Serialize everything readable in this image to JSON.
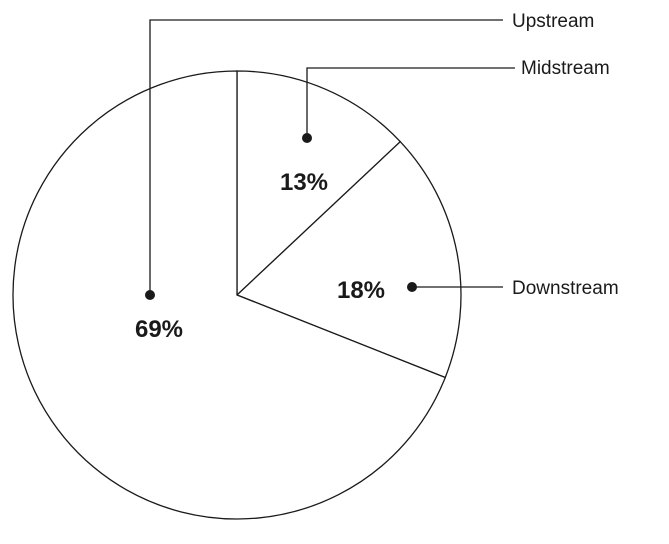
{
  "chart_data": {
    "type": "pie",
    "title": "",
    "start": "12 o'clock",
    "direction": "clockwise",
    "slices": [
      {
        "label": "Midstream",
        "value": 13,
        "value_label": "13%",
        "fill": "#ffffff"
      },
      {
        "label": "Downstream",
        "value": 18,
        "value_label": "18%",
        "fill": "#ffffff"
      },
      {
        "label": "Upstream",
        "value": 69,
        "value_label": "69%",
        "fill": "#ffffff"
      }
    ],
    "labels_style": "external labels with leader lines",
    "outline_color": "#1a1a1a"
  }
}
